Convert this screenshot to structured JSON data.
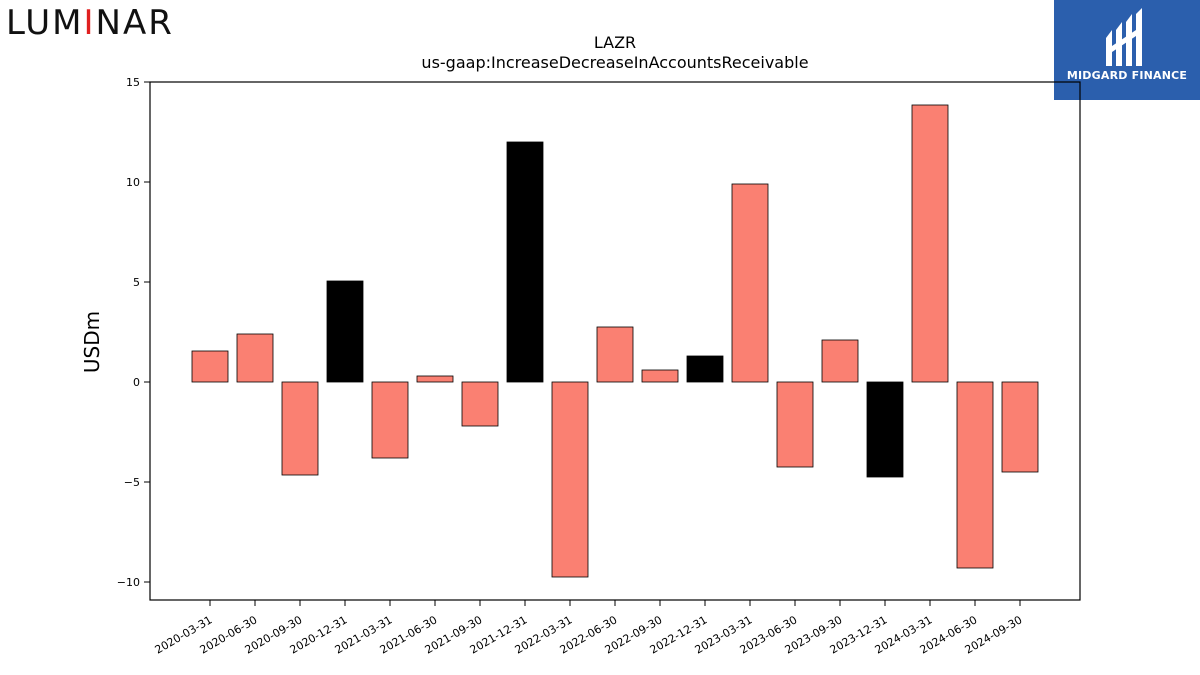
{
  "brand": {
    "left_logo_text": "LUMINAR",
    "right_logo_text": "MIDGARD FINANCE"
  },
  "colors": {
    "positive_bar": "#fa8072",
    "negative_or_q4_bar": "#000000",
    "midgard_blue": "#2b5fad"
  },
  "chart_data": {
    "type": "bar",
    "title": "LAZR",
    "subtitle": "us-gaap:IncreaseDecreaseInAccountsReceivable",
    "ylabel": "USDm",
    "xlabel": "",
    "ylim": [
      -10.9,
      15
    ],
    "yticks": [
      15,
      10,
      5,
      0,
      -5,
      -10
    ],
    "ytick_labels": [
      "15",
      "10",
      "5",
      "0",
      "−5",
      "−10"
    ],
    "grid": false,
    "categories": [
      "2020-03-31",
      "2020-06-30",
      "2020-09-30",
      "2020-12-31",
      "2021-03-31",
      "2021-06-30",
      "2021-09-30",
      "2021-12-31",
      "2022-03-31",
      "2022-06-30",
      "2022-09-30",
      "2022-12-31",
      "2023-03-31",
      "2023-06-30",
      "2023-09-30",
      "2023-12-31",
      "2024-03-31",
      "2024-06-30",
      "2024-09-30"
    ],
    "values": [
      1.55,
      2.4,
      -4.65,
      5.05,
      -3.8,
      0.3,
      -2.2,
      12.0,
      -9.75,
      2.75,
      0.6,
      1.3,
      9.9,
      -4.25,
      2.1,
      -4.75,
      13.85,
      -9.3,
      -4.5
    ],
    "bar_colors": [
      "#fa8072",
      "#fa8072",
      "#fa8072",
      "#000000",
      "#fa8072",
      "#fa8072",
      "#fa8072",
      "#000000",
      "#fa8072",
      "#fa8072",
      "#fa8072",
      "#000000",
      "#fa8072",
      "#fa8072",
      "#fa8072",
      "#000000",
      "#fa8072",
      "#fa8072",
      "#fa8072"
    ]
  }
}
